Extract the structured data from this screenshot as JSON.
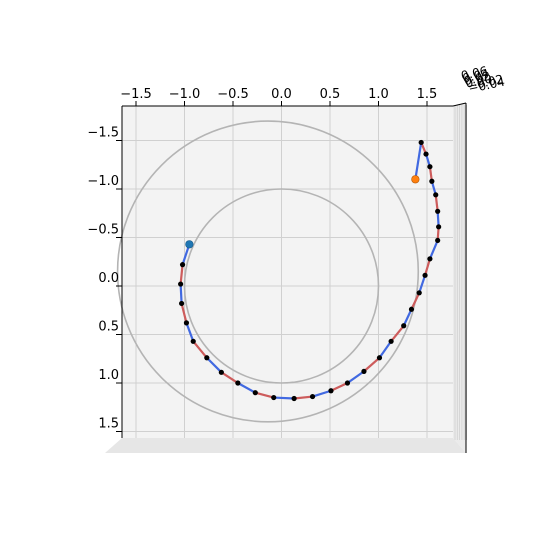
{
  "chart_data": {
    "type": "line",
    "projection": "3d-top-view",
    "title": "",
    "xlabel": "",
    "ylabel": "",
    "zlabel": "",
    "x_ticks": [
      "−1.5",
      "−1.0",
      "−0.5",
      "0.0",
      "0.5",
      "1.0",
      "1.5"
    ],
    "x_tick_values": [
      -1.5,
      -1.0,
      -0.5,
      0.0,
      0.5,
      1.0,
      1.5
    ],
    "y_ticks": [
      "−1.5",
      "−1.0",
      "−0.5",
      "0.0",
      "0.5",
      "1.0",
      "1.5"
    ],
    "y_tick_values": [
      -1.5,
      -1.0,
      -0.5,
      0.0,
      0.5,
      1.0,
      1.5
    ],
    "z_ticks": [
      "0.06",
      "0.04",
      "0.02",
      "0.00",
      "−0.02",
      "−0.04"
    ],
    "xlim": [
      -1.65,
      1.8
    ],
    "ylim": [
      -1.85,
      1.6
    ],
    "grid": true,
    "reference_circles": [
      {
        "cx": 0.0,
        "cy": 0.0,
        "r": 1.0,
        "color": "#b4b4b4"
      },
      {
        "cx": -0.14,
        "cy": -0.15,
        "r": 1.55,
        "color": "#b4b4b4"
      }
    ],
    "path_colors": [
      "#4169e1",
      "#cd5c5c"
    ],
    "start_point": {
      "x": -0.95,
      "y": -0.43,
      "color": "#1f77b4"
    },
    "end_point": {
      "x": 1.38,
      "y": -1.1,
      "color": "#ff7f0e"
    },
    "points": [
      {
        "x": -1.02,
        "y": -0.22
      },
      {
        "x": -1.04,
        "y": -0.02
      },
      {
        "x": -1.03,
        "y": 0.18
      },
      {
        "x": -0.98,
        "y": 0.38
      },
      {
        "x": -0.91,
        "y": 0.57
      },
      {
        "x": -0.77,
        "y": 0.74
      },
      {
        "x": -0.62,
        "y": 0.89
      },
      {
        "x": -0.45,
        "y": 1.0
      },
      {
        "x": -0.27,
        "y": 1.1
      },
      {
        "x": -0.08,
        "y": 1.15
      },
      {
        "x": 0.13,
        "y": 1.16
      },
      {
        "x": 0.32,
        "y": 1.14
      },
      {
        "x": 0.51,
        "y": 1.08
      },
      {
        "x": 0.68,
        "y": 1.0
      },
      {
        "x": 0.85,
        "y": 0.88
      },
      {
        "x": 1.01,
        "y": 0.74
      },
      {
        "x": 1.13,
        "y": 0.57
      },
      {
        "x": 1.26,
        "y": 0.41
      },
      {
        "x": 1.34,
        "y": 0.24
      },
      {
        "x": 1.42,
        "y": 0.07
      },
      {
        "x": 1.48,
        "y": -0.11
      },
      {
        "x": 1.53,
        "y": -0.28
      },
      {
        "x": 1.61,
        "y": -0.47
      },
      {
        "x": 1.62,
        "y": -0.61
      },
      {
        "x": 1.61,
        "y": -0.77
      },
      {
        "x": 1.59,
        "y": -0.94
      },
      {
        "x": 1.55,
        "y": -1.08
      },
      {
        "x": 1.53,
        "y": -1.23
      },
      {
        "x": 1.49,
        "y": -1.36
      },
      {
        "x": 1.44,
        "y": -1.48
      }
    ]
  }
}
